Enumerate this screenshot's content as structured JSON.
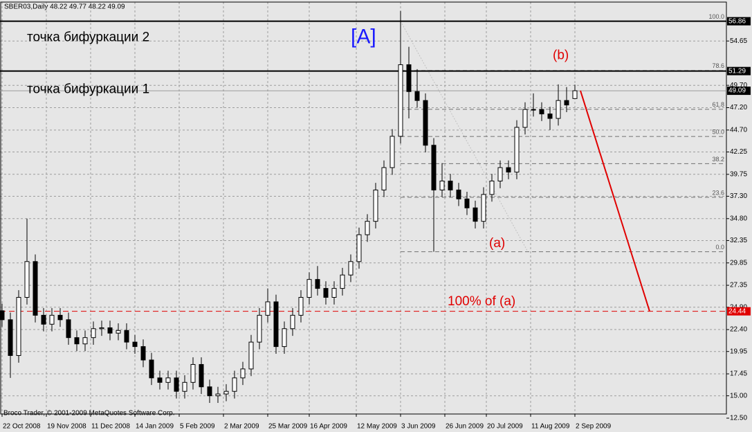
{
  "chart_data": {
    "type": "candlestick",
    "header": "SBER03,Daily  48.22 49.77 48.22 49.09",
    "footer": "Broco Trader, © 2001-2009 MetaQuotes Software Corp.",
    "xlim": [
      -0.75,
      261.75
    ],
    "ylim": [
      12.5,
      59.0
    ],
    "xticks": [
      {
        "value": 0,
        "label": "22 Oct 2008"
      },
      {
        "value": 16,
        "label": "19 Nov 2008"
      },
      {
        "value": 32,
        "label": "11 Dec 2008"
      },
      {
        "value": 48,
        "label": "14 Jan 2009"
      },
      {
        "value": 64,
        "label": "5 Feb 2009"
      },
      {
        "value": 80,
        "label": "2 Mar 2009"
      },
      {
        "value": 96,
        "label": "25 Mar 2009"
      },
      {
        "value": 111,
        "label": "16 Apr 2009"
      },
      {
        "value": 128,
        "label": "12 May 2009"
      },
      {
        "value": 144,
        "label": "3 Jun 2009"
      },
      {
        "value": 160,
        "label": "26 Jun 2009"
      },
      {
        "value": 175,
        "label": "20 Jul 2009"
      },
      {
        "value": 191,
        "label": "11 Aug 2009"
      },
      {
        "value": 207,
        "label": "2 Sep 2009"
      }
    ],
    "yticks": [
      54.65,
      {
        "value": 49.7,
        "label": "49.70"
      },
      {
        "value": 47.2,
        "label": "47.20"
      },
      {
        "value": 44.7,
        "label": "44.70"
      },
      42.25,
      39.75,
      {
        "value": 37.3,
        "label": "37.30"
      },
      {
        "value": 34.8,
        "label": "34.80"
      },
      32.35,
      29.85,
      27.35,
      {
        "value": 24.9,
        "label": "24.90"
      },
      {
        "value": 22.4,
        "label": "22.40"
      },
      19.95,
      17.45,
      {
        "value": 15,
        "label": "15.00"
      },
      {
        "value": 12.5,
        "label": "12.50"
      }
    ],
    "grid": true,
    "candles": {
      "x": [
        0,
        3,
        6,
        9,
        12,
        15,
        18,
        21,
        24,
        27,
        30,
        33,
        36,
        39,
        42,
        45,
        48,
        51,
        54,
        57,
        60,
        63,
        66,
        69,
        72,
        75,
        78,
        81,
        84,
        87,
        90,
        93,
        96,
        99,
        102,
        105,
        108,
        111,
        114,
        117,
        120,
        123,
        126,
        129,
        132,
        135,
        138,
        141,
        144,
        147,
        150,
        153,
        156,
        159,
        162,
        165,
        168,
        171,
        174,
        177,
        180,
        183,
        186,
        189,
        192,
        195,
        198,
        201,
        204,
        207
      ],
      "open": [
        24.5,
        23.5,
        19.5,
        26,
        30,
        24,
        23,
        24,
        23.5,
        21.5,
        20.8,
        21.5,
        22.5,
        22.6,
        22,
        22.3,
        21,
        20.5,
        19,
        17,
        16.5,
        17,
        15.5,
        16.5,
        18.5,
        16,
        15,
        15.2,
        15.5,
        17,
        18,
        21,
        24,
        25.5,
        20.5,
        22.5,
        24,
        26,
        28,
        27,
        26,
        27,
        28.5,
        30,
        33,
        34.5,
        38,
        40.5,
        44,
        52,
        49,
        48,
        43,
        38,
        39,
        38,
        37,
        36,
        34.5,
        37.5,
        39,
        40.5,
        40,
        45,
        47,
        47,
        46.5,
        46,
        48,
        48.22
      ],
      "high": [
        25.3,
        24.3,
        26.8,
        34.8,
        30.8,
        24.8,
        24.8,
        24.8,
        24.3,
        22.3,
        22.3,
        23.3,
        23.4,
        23.4,
        23.1,
        23.1,
        21.8,
        21.3,
        19.8,
        17.8,
        17.8,
        17.8,
        17.3,
        19.3,
        19.3,
        16.8,
        16.0,
        16.3,
        17.8,
        18.8,
        21.8,
        24.8,
        27.0,
        26.3,
        23.3,
        24.8,
        26.8,
        28.8,
        29.5,
        27.8,
        27.8,
        29.3,
        30.8,
        33.8,
        35.3,
        38.8,
        41.3,
        44.8,
        58.0,
        54.0,
        51.5,
        48.8,
        43.8,
        41.0,
        39.8,
        38.8,
        37.8,
        36.8,
        38.3,
        39.8,
        41.3,
        41.3,
        45.8,
        47.8,
        48.8,
        47.8,
        47.3,
        49.8,
        49.5,
        49.77
      ],
      "low": [
        22.7,
        17.0,
        18.7,
        25.2,
        23.2,
        22.2,
        22.2,
        22.7,
        20.7,
        20.0,
        20.0,
        20.7,
        21.7,
        21.2,
        21.2,
        20.2,
        19.7,
        18.2,
        16.2,
        15.7,
        15.7,
        14.7,
        14.7,
        15.7,
        15.2,
        14.2,
        14.2,
        14.4,
        14.7,
        16.2,
        17.2,
        20.2,
        23.2,
        19.7,
        19.7,
        21.7,
        23.2,
        25.2,
        26.2,
        25.2,
        25.2,
        26.2,
        27.7,
        29.2,
        32.2,
        33.7,
        37.2,
        39.7,
        43.2,
        46.0,
        47.2,
        42.2,
        31.1,
        37.2,
        37.2,
        36.2,
        35.2,
        33.7,
        33.7,
        36.7,
        38.2,
        39.2,
        39.2,
        44.2,
        46.2,
        45.7,
        44.7,
        45.2,
        46.7,
        48.22
      ],
      "close": [
        23.5,
        19.5,
        26,
        30,
        24,
        23,
        24,
        23.5,
        21.5,
        20.8,
        21.5,
        22.5,
        22.6,
        22,
        22.3,
        21,
        20.5,
        19,
        17,
        16.5,
        17,
        15.5,
        16.5,
        18.5,
        16,
        15,
        15.2,
        15.5,
        17,
        18,
        21,
        24,
        25.5,
        20.5,
        22.5,
        24,
        26,
        28,
        27,
        26,
        27,
        28.5,
        30,
        33,
        34.5,
        38,
        40.5,
        44,
        52,
        49,
        48,
        43,
        38,
        39,
        38,
        37,
        36,
        34.5,
        37.5,
        39,
        40.5,
        40,
        45,
        47,
        47,
        46.5,
        46,
        48,
        47.5,
        49.09
      ]
    },
    "hlines": [
      {
        "value": 56.86,
        "color": "#000000",
        "style": "solid"
      },
      {
        "value": 51.29,
        "color": "#000000",
        "style": "solid"
      },
      {
        "value": 49.09,
        "color": "#9a9a9a",
        "style": "solid"
      },
      {
        "value": 24.44,
        "color": "#e00000",
        "style": "dashed"
      }
    ],
    "fibo": {
      "x": [
        144,
        190
      ],
      "levels": [
        {
          "value": 56.86,
          "label": "100.0"
        },
        {
          "value": 51.35,
          "label": "78.6"
        },
        {
          "value": 47.02,
          "label": "61.8"
        },
        {
          "value": 43.98,
          "label": "50.0"
        },
        {
          "value": 40.94,
          "label": "38.2"
        },
        {
          "value": 37.18,
          "label": "23.6"
        },
        {
          "value": 31.1,
          "label": "0.0"
        }
      ]
    },
    "projection": {
      "x": [
        209,
        234
      ],
      "y": [
        49.1,
        24.44
      ],
      "color": "#e00000"
    },
    "annotations": [
      {
        "text": "точка бифуркации 2",
        "x": 9,
        "y": 55.0,
        "color": "#000000",
        "size": 19
      },
      {
        "text": "точка бифуркации 1",
        "x": 9,
        "y": 49.2,
        "color": "#000000",
        "size": 19
      },
      {
        "text": "[A]",
        "x": 126,
        "y": 55.0,
        "color": "#1a1aff",
        "size": 30
      },
      {
        "text": "(b)",
        "x": 199,
        "y": 53.0,
        "color": "#e00000",
        "size": 19
      },
      {
        "text": "(a)",
        "x": 176,
        "y": 32.0,
        "color": "#e00000",
        "size": 19
      },
      {
        "text": "100% of (a)",
        "x": 161,
        "y": 25.5,
        "color": "#e00000",
        "size": 19
      }
    ]
  }
}
